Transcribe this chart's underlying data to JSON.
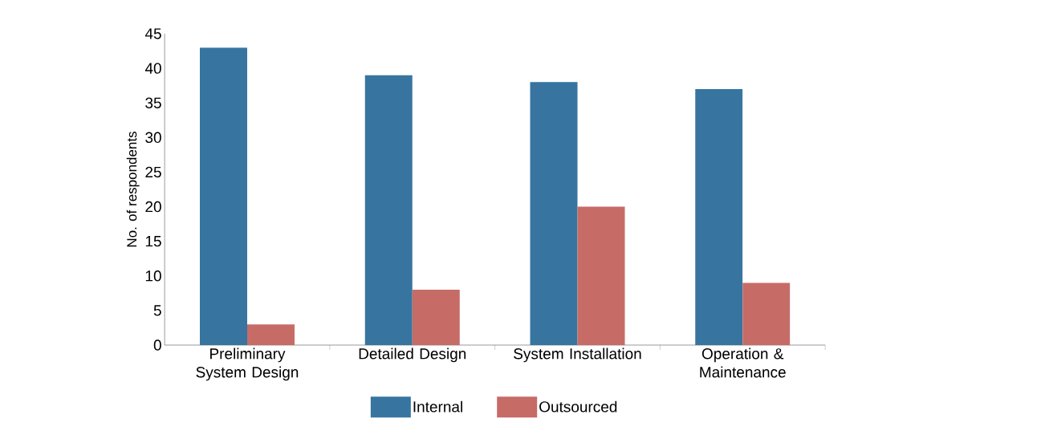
{
  "chart_data": {
    "type": "bar",
    "ylabel": "No. of respondents",
    "categories": [
      "Preliminary System Design",
      "Detailed Design",
      "System Installation",
      "Operation & Maintenance"
    ],
    "series": [
      {
        "name": "Internal",
        "color": "#3775a0",
        "values": [
          43,
          39,
          38,
          37
        ]
      },
      {
        "name": "Outsourced",
        "color": "#c76b67",
        "values": [
          3,
          8,
          20,
          9
        ]
      }
    ],
    "ylim": [
      0,
      45
    ],
    "yticks": [
      0,
      5,
      10,
      15,
      20,
      25,
      30,
      35,
      40,
      45
    ],
    "legend": "bottom",
    "grid": false
  }
}
